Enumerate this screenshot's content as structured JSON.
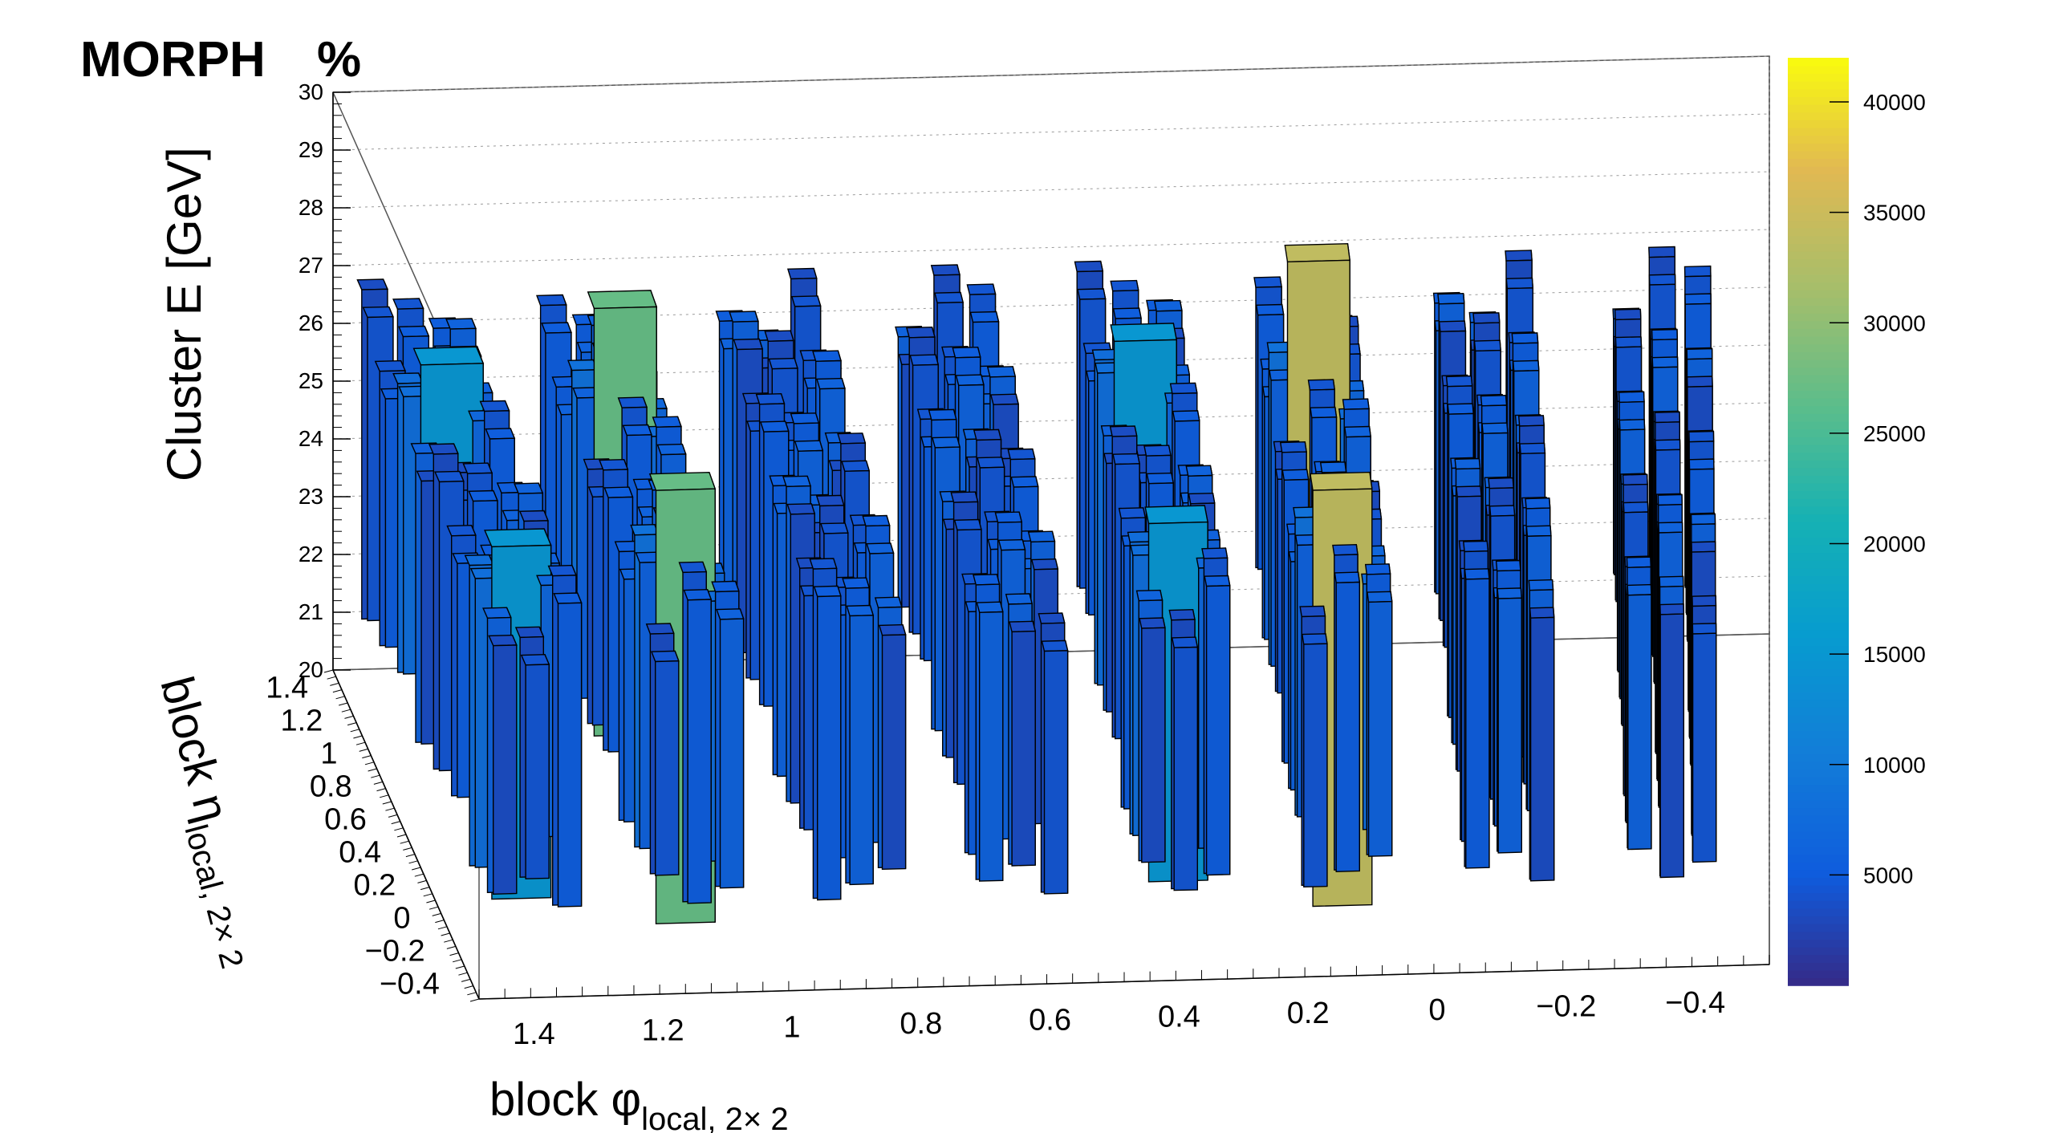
{
  "title": "MORPH",
  "title_suffix": "%",
  "chart_data": {
    "type": "lego3d",
    "zlabel": "Cluster E  [GeV]",
    "xlabel_main": "block φ",
    "xlabel_sub": "local, 2× 2",
    "ylabel_main": "block η",
    "ylabel_sub": "local, 2× 2",
    "zlim": [
      20,
      30
    ],
    "z_ticks": [
      "20",
      "21",
      "22",
      "23",
      "24",
      "25",
      "26",
      "27",
      "28",
      "29",
      "30"
    ],
    "x_ticks": [
      {
        "v": 1.4,
        "label": "1.4"
      },
      {
        "v": 1.2,
        "label": "1.2"
      },
      {
        "v": 1.0,
        "label": "1"
      },
      {
        "v": 0.8,
        "label": "0.8"
      },
      {
        "v": 0.6,
        "label": "0.6"
      },
      {
        "v": 0.4,
        "label": "0.4"
      },
      {
        "v": 0.2,
        "label": "0.2"
      },
      {
        "v": 0.0,
        "label": "0"
      },
      {
        "v": -0.2,
        "label": "−0.2"
      },
      {
        "v": -0.4,
        "label": "−0.4"
      }
    ],
    "y_ticks": [
      {
        "v": 1.4,
        "label": "1.4"
      },
      {
        "v": 1.2,
        "label": "1.2"
      },
      {
        "v": 1.0,
        "label": "1"
      },
      {
        "v": 0.8,
        "label": "0.8"
      },
      {
        "v": 0.6,
        "label": "0.6"
      },
      {
        "v": 0.4,
        "label": "0.4"
      },
      {
        "v": 0.2,
        "label": "0.2"
      },
      {
        "v": 0.0,
        "label": "0"
      },
      {
        "v": -0.2,
        "label": "−0.2"
      },
      {
        "v": -0.4,
        "label": "−0.4"
      }
    ],
    "colorbar": {
      "min": 0,
      "max": 42000,
      "ticks": [
        {
          "v": 5000,
          "label": "5000"
        },
        {
          "v": 10000,
          "label": "10000"
        },
        {
          "v": 15000,
          "label": "15000"
        },
        {
          "v": 20000,
          "label": "20000"
        },
        {
          "v": 25000,
          "label": "25000"
        },
        {
          "v": 30000,
          "label": "30000"
        },
        {
          "v": 35000,
          "label": "35000"
        },
        {
          "v": 40000,
          "label": "40000"
        }
      ]
    },
    "bars": {
      "groups_x": [
        1.45,
        1.2,
        0.95,
        0.7,
        0.45,
        0.2,
        -0.05,
        -0.3
      ],
      "groups_y": [
        1.45,
        1.2,
        0.95,
        0.7,
        0.45,
        0.2,
        -0.05,
        -0.3
      ],
      "sub_dx": [
        0.0,
        0.05,
        0.1
      ],
      "e_low": 21.1,
      "e_high": 26.8,
      "bright": [
        {
          "row": 2,
          "col": 1,
          "e_low": 20.7,
          "e_high": 28.1,
          "counts": 27000
        },
        {
          "row": 6,
          "col": 1,
          "e_low": 20.3,
          "e_high": 27.8,
          "counts": 27000
        },
        {
          "row": 2,
          "col": 5,
          "e_low": 20.2,
          "e_high": 28.6,
          "counts": 34000
        },
        {
          "row": 6,
          "col": 5,
          "e_low": 20.3,
          "e_high": 27.5,
          "counts": 34000
        },
        {
          "row": 2,
          "col": 0,
          "e_low": 21.2,
          "e_high": 27.2,
          "counts": 15000
        },
        {
          "row": 6,
          "col": 0,
          "e_low": 20.8,
          "e_high": 26.9,
          "counts": 15000
        },
        {
          "row": 2,
          "col": 4,
          "e_low": 21.0,
          "e_high": 27.3,
          "counts": 15000
        },
        {
          "row": 6,
          "col": 4,
          "e_low": 20.8,
          "e_high": 27.0,
          "counts": 15000
        }
      ]
    }
  }
}
